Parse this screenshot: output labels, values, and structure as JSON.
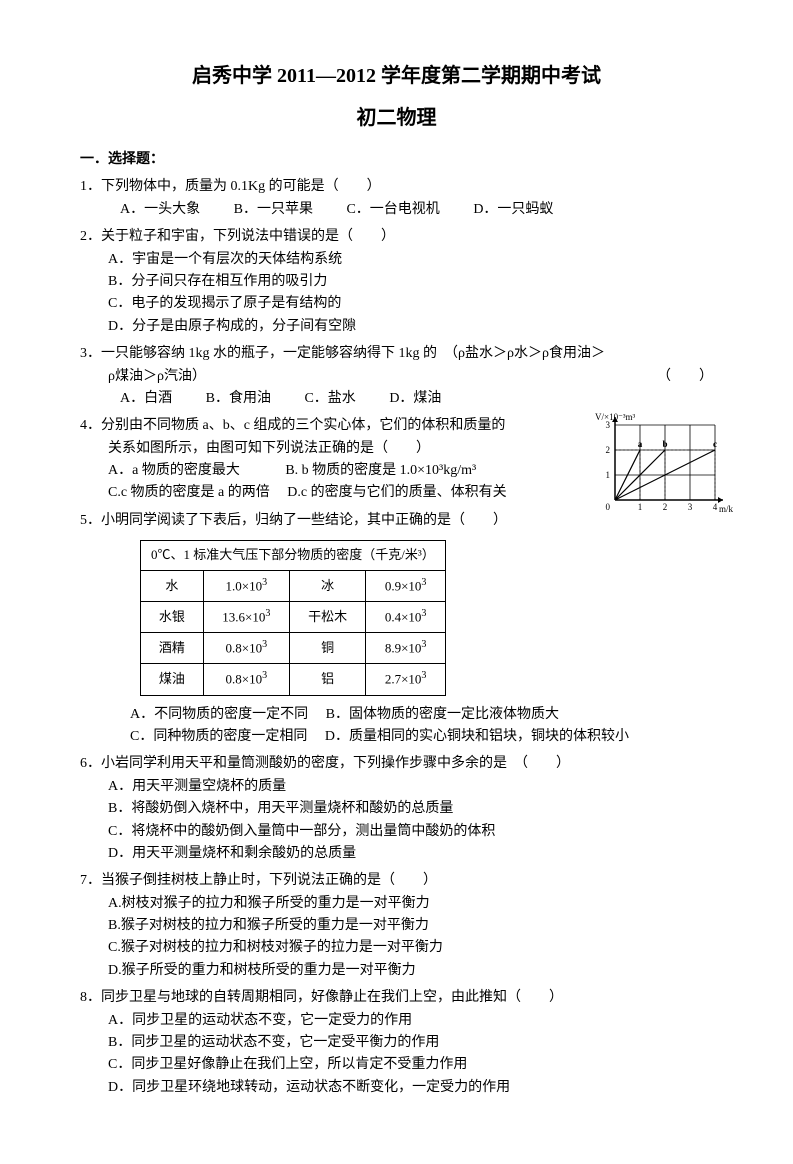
{
  "title": "启秀中学 2011—2012 学年度第二学期期中考试",
  "subtitle": "初二物理",
  "section1": "一．选择题：",
  "q1": {
    "text": "1．下列物体中，质量为 0.1Kg 的可能是（　　）",
    "optA": "A．一头大象",
    "optB": "B．一只苹果",
    "optC": "C．一台电视机",
    "optD": "D．一只蚂蚁"
  },
  "q2": {
    "text": "2．关于粒子和宇宙，下列说法中错误的是（　　）",
    "optA": "A．宇宙是一个有层次的天体结构系统",
    "optB": "B．分子间只存在相互作用的吸引力",
    "optC": "C．电子的发现揭示了原子是有结构的",
    "optD": "D．分子是由原子构成的，分子间有空隙"
  },
  "q3": {
    "text1": "3．一只能够容纳 1kg 水的瓶子，一定能够容纳得下 1kg 的　（ρ盐水＞ρ水＞ρ食用油＞",
    "text2": "ρ煤油＞ρ汽油）",
    "paren": "（　　）",
    "optA": "A．白酒",
    "optB": "B．食用油",
    "optC": "C．盐水",
    "optD": "D．煤油"
  },
  "q4": {
    "text1": "4．分别由不同物质 a、b、c 组成的三个实心体，它们的体积和质量的",
    "text2": "关系如图所示，由图可知下列说法正确的是（　　）",
    "optA": "A．a 物质的密度最大",
    "optB": "B. b 物质的密度是 1.0×10³kg/m³",
    "optC": "C.c 物质的密度是 a 的两倍",
    "optD": "D.c 的密度与它们的质量、体积有关",
    "chart": {
      "type": "line",
      "xlabel": "m/kg",
      "ylabel": "V/×10⁻³m³",
      "xticks": [
        0,
        1,
        2,
        3,
        4
      ],
      "yticks": [
        0,
        1,
        2,
        3
      ],
      "xlim": [
        0,
        4
      ],
      "ylim": [
        0,
        3
      ],
      "series": [
        {
          "label": "a",
          "x": [
            0,
            1
          ],
          "y": [
            0,
            2
          ],
          "color": "#000000"
        },
        {
          "label": "b",
          "x": [
            0,
            2
          ],
          "y": [
            0,
            2
          ],
          "color": "#000000"
        },
        {
          "label": "c",
          "x": [
            0,
            4
          ],
          "y": [
            0,
            2
          ],
          "color": "#000000"
        }
      ],
      "grid_color": "#000000",
      "background_color": "#ffffff",
      "line_width": 1.2,
      "fontsize": 9
    }
  },
  "q5": {
    "text": "5．小明同学阅读了下表后，归纳了一些结论，其中正确的是（　　）",
    "table_header": "0℃、1 标准大气压下部分物质的密度（千克/米³）",
    "rows": [
      [
        "水",
        "1.0×10³",
        "冰",
        "0.9×10³"
      ],
      [
        "水银",
        "13.6×10³",
        "干松木",
        "0.4×10³"
      ],
      [
        "酒精",
        "0.8×10³",
        "铜",
        "8.9×10³"
      ],
      [
        "煤油",
        "0.8×10³",
        "铝",
        "2.7×10³"
      ]
    ],
    "optA": "A．不同物质的密度一定不同",
    "optB": "B．固体物质的密度一定比液体物质大",
    "optC": "C．同种物质的密度一定相同",
    "optD": "D．质量相同的实心铜块和铝块，铜块的体积较小"
  },
  "q6": {
    "text": "6．小岩同学利用天平和量筒测酸奶的密度，下列操作步骤中多余的是　（　　）",
    "optA": "A．用天平测量空烧杯的质量",
    "optB": "B．将酸奶倒入烧杯中，用天平测量烧杯和酸奶的总质量",
    "optC": "C．将烧杯中的酸奶倒入量筒中一部分，测出量筒中酸奶的体积",
    "optD": "D．用天平测量烧杯和剩余酸奶的总质量"
  },
  "q7": {
    "text": "7．当猴子倒挂树枝上静止时，下列说法正确的是（　　）",
    "optA": "A.树枝对猴子的拉力和猴子所受的重力是一对平衡力",
    "optB": "B.猴子对树枝的拉力和猴子所受的重力是一对平衡力",
    "optC": "C.猴子对树枝的拉力和树枝对猴子的拉力是一对平衡力",
    "optD": "D.猴子所受的重力和树枝所受的重力是一对平衡力"
  },
  "q8": {
    "text": "8．同步卫星与地球的自转周期相同，好像静止在我们上空，由此推知（　　）",
    "optA": "A．同步卫星的运动状态不变，它一定受力的作用",
    "optB": "B．同步卫星的运动状态不变，它一定受平衡力的作用",
    "optC": "C．同步卫星好像静止在我们上空，所以肯定不受重力作用",
    "optD": "D．同步卫星环绕地球转动，运动状态不断变化，一定受力的作用"
  }
}
